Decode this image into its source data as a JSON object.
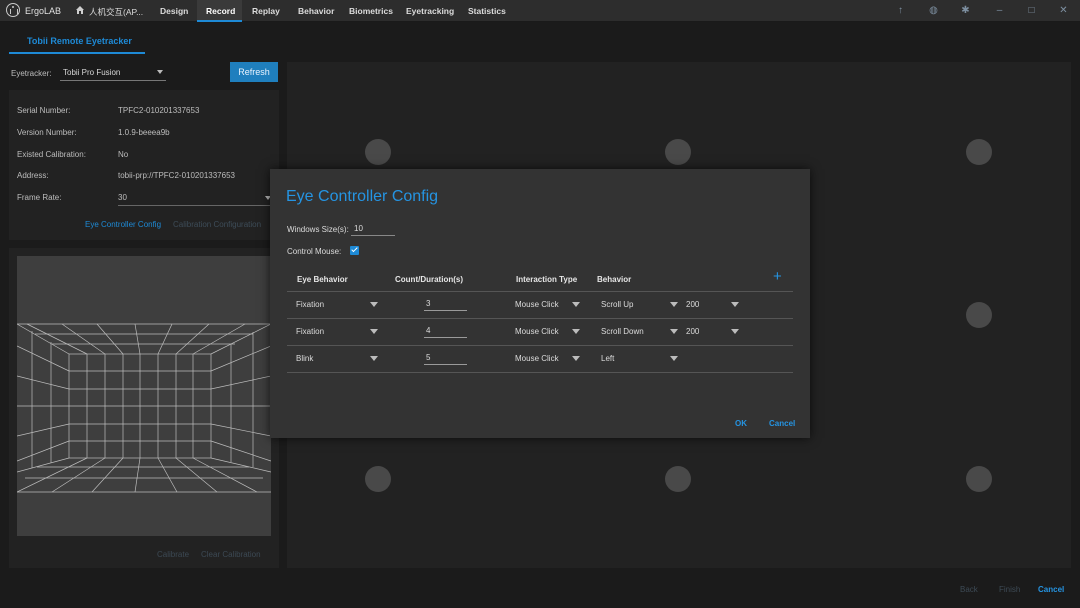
{
  "app": {
    "name": "ErgoLAB"
  },
  "menu": {
    "items": [
      {
        "label": "人机交互(AP..."
      },
      {
        "label": "Design"
      },
      {
        "label": "Record"
      },
      {
        "label": "Replay"
      },
      {
        "label": "Behavior"
      },
      {
        "label": "Biometrics"
      },
      {
        "label": "Eyetracking"
      },
      {
        "label": "Statistics"
      }
    ],
    "active": "Record"
  },
  "subtab": {
    "label": "Tobii Remote Eyetracker"
  },
  "left": {
    "eyetracker_label": "Eyetracker:",
    "eyetracker_value": "Tobii Pro Fusion",
    "refresh_label": "Refresh",
    "info": [
      {
        "label": "Serial Number:",
        "value": "TPFC2-010201337653"
      },
      {
        "label": "Version Number:",
        "value": "1.0.9-beeea9b"
      },
      {
        "label": "Existed Calibration:",
        "value": "No"
      },
      {
        "label": "Address:",
        "value": "tobii-prp://TPFC2-010201337653"
      },
      {
        "label": "Frame Rate:",
        "value": "30"
      }
    ],
    "eye_controller_link": "Eye Controller Config",
    "calibration_link": "Calibration Configuration",
    "calibrate_link": "Calibrate",
    "clear_calibration_link": "Clear Calibration"
  },
  "bottom": {
    "back": "Back",
    "finish": "Finish",
    "cancel": "Cancel"
  },
  "dialog": {
    "title": "Eye Controller Config",
    "window_size_label": "Windows Size(s):",
    "window_size_value": "10",
    "control_mouse_label": "Control Mouse:",
    "control_mouse_checked": true,
    "headers": {
      "eye_behavior": "Eye Behavior",
      "count_duration": "Count/Duration(s)",
      "interaction_type": "Interaction Type",
      "behavior": "Behavior"
    },
    "rows": [
      {
        "eye_behavior": "Fixation",
        "count": "3",
        "interaction": "Mouse Click",
        "behavior": "Scroll Up",
        "amount": "200"
      },
      {
        "eye_behavior": "Fixation",
        "count": "4",
        "interaction": "Mouse Click",
        "behavior": "Scroll Down",
        "amount": "200"
      },
      {
        "eye_behavior": "Blink",
        "count": "5",
        "interaction": "Mouse Click",
        "behavior": "Left",
        "amount": ""
      }
    ],
    "ok": "OK",
    "cancel": "Cancel"
  },
  "colors": {
    "accent": "#1e8ad6",
    "dialog_bg": "#333333",
    "stage_bg": "#222222"
  }
}
